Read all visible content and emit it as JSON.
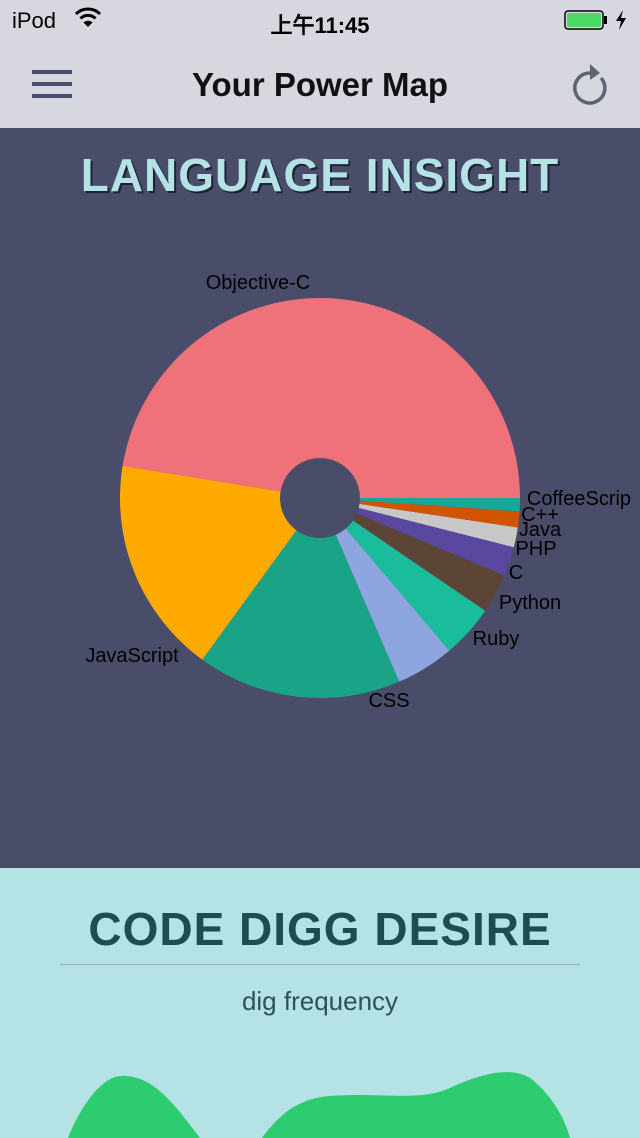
{
  "status_bar": {
    "carrier": "iPod",
    "time": "上午11:45"
  },
  "nav": {
    "title": "Your Power Map",
    "menu_icon": "hamburger-icon",
    "refresh_icon": "refresh-icon"
  },
  "language_section": {
    "heading": "LANGUAGE INSIGHT",
    "chart_data": {
      "type": "pie",
      "donut": true,
      "labels": [
        "Objective-C",
        "JavaScript",
        "CSS",
        "Ruby",
        "Python",
        "C",
        "PHP",
        "Java",
        "C++",
        "CoffeeScrip"
      ],
      "values": [
        44.3,
        16.4,
        15.4,
        4.4,
        4.0,
        3.0,
        2.2,
        1.5,
        1.2,
        1.0
      ],
      "colors": [
        "#ef727a",
        "#ffaa00",
        "#19a487",
        "#8ea6e0",
        "#1abc9c",
        "#5c4537",
        "#5a48a0",
        "#c8c8c8",
        "#d35400",
        "#16a79b"
      ]
    }
  },
  "dig_section": {
    "heading": "CODE DIGG DESIRE",
    "subtitle": "dig frequency",
    "wave_color": "#2ecc71"
  }
}
